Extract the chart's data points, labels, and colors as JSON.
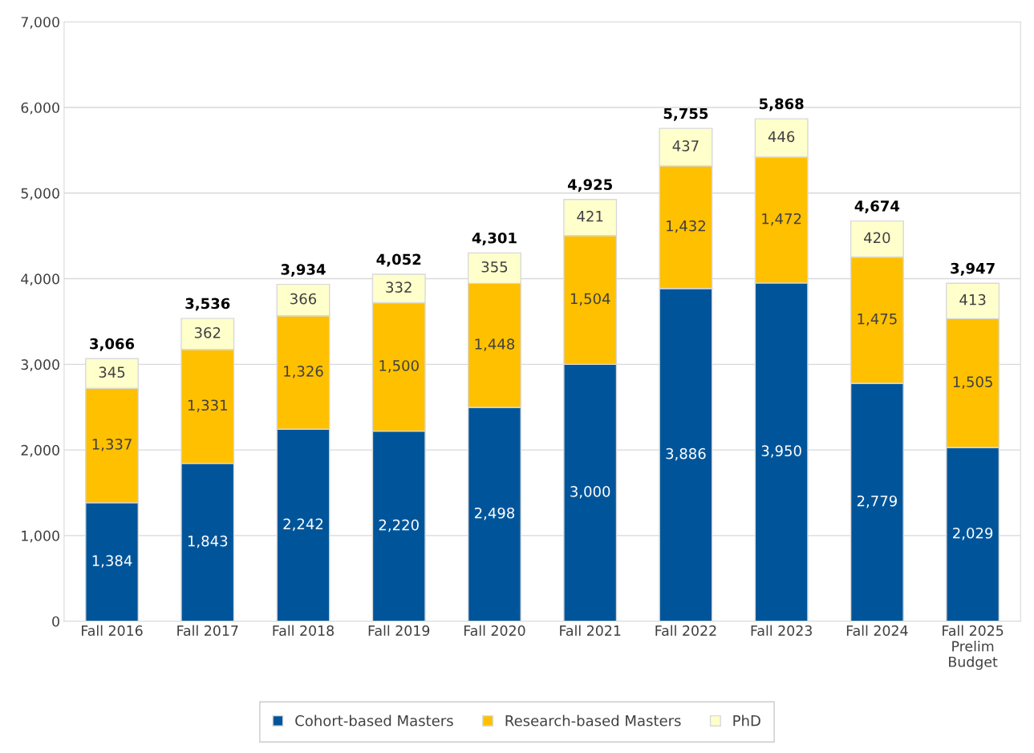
{
  "chart_data": {
    "type": "bar",
    "stacked": true,
    "categories": [
      "Fall 2016",
      "Fall 2017",
      "Fall 2018",
      "Fall 2019",
      "Fall 2020",
      "Fall 2021",
      "Fall 2022",
      "Fall 2023",
      "Fall 2024",
      "Fall 2025\nPrelim\nBudget"
    ],
    "series": [
      {
        "name": "Cohort-based Masters",
        "color": "#00559a",
        "values": [
          1384,
          1843,
          2242,
          2220,
          2498,
          3000,
          3886,
          3950,
          2779,
          2029
        ],
        "value_labels": [
          "1,384",
          "1,843",
          "2,242",
          "2,220",
          "2,498",
          "3,000",
          "3,886",
          "3,950",
          "2,779",
          "2,029"
        ]
      },
      {
        "name": "Research-based Masters",
        "color": "#ffc000",
        "values": [
          1337,
          1331,
          1326,
          1500,
          1448,
          1504,
          1432,
          1472,
          1475,
          1505
        ],
        "value_labels": [
          "1,337",
          "1,331",
          "1,326",
          "1,500",
          "1,448",
          "1,504",
          "1,432",
          "1,472",
          "1,475",
          "1,505"
        ]
      },
      {
        "name": "PhD",
        "color": "#ffffcc",
        "values": [
          345,
          362,
          366,
          332,
          355,
          421,
          437,
          446,
          420,
          413
        ],
        "value_labels": [
          "345",
          "362",
          "366",
          "332",
          "355",
          "421",
          "437",
          "446",
          "420",
          "413"
        ]
      }
    ],
    "totals": [
      "3,066",
      "3,536",
      "3,934",
      "4,052",
      "4,301",
      "4,925",
      "5,755",
      "5,868",
      "4,674",
      "3,947"
    ],
    "ylim": [
      0,
      7000
    ],
    "yticks": [
      {
        "value": 0,
        "label": "0"
      },
      {
        "value": 1000,
        "label": "1,000"
      },
      {
        "value": 2000,
        "label": "2,000"
      },
      {
        "value": 3000,
        "label": "3,000"
      },
      {
        "value": 4000,
        "label": "4,000"
      },
      {
        "value": 5000,
        "label": "5,000"
      },
      {
        "value": 6000,
        "label": "6,000"
      },
      {
        "value": 7000,
        "label": "7,000"
      }
    ],
    "grid": "y",
    "legend": "bottom"
  }
}
